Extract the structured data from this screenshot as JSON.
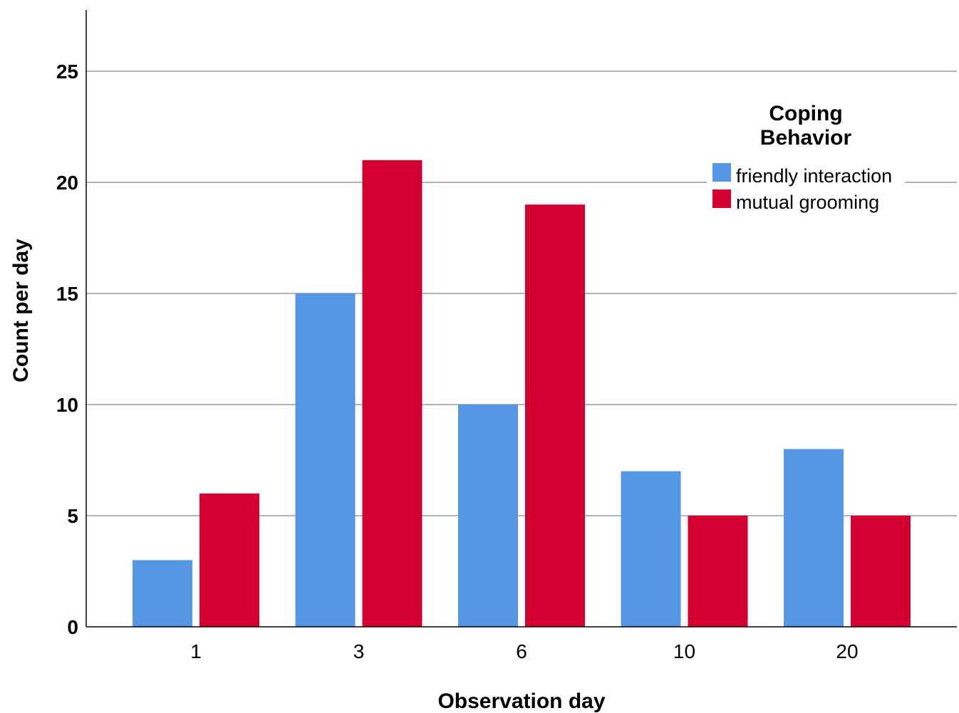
{
  "chart_data": {
    "type": "bar",
    "categories": [
      "1",
      "3",
      "6",
      "10",
      "20"
    ],
    "series": [
      {
        "name": "friendly interaction",
        "values": [
          3,
          15,
          10,
          7,
          8
        ],
        "color": "#5597e4"
      },
      {
        "name": "mutual grooming",
        "values": [
          6,
          21,
          19,
          5,
          5
        ],
        "color": "#d50032"
      }
    ],
    "xlabel": "Observation day",
    "ylabel": "Count per day",
    "ylim": [
      0,
      27.5
    ],
    "yticks": [
      "0",
      "5",
      "10",
      "15",
      "20",
      "25"
    ],
    "grid": "horizontal",
    "legend": {
      "title_line1": "Coping",
      "title_line2": "Behavior",
      "placement": "top-right"
    }
  }
}
